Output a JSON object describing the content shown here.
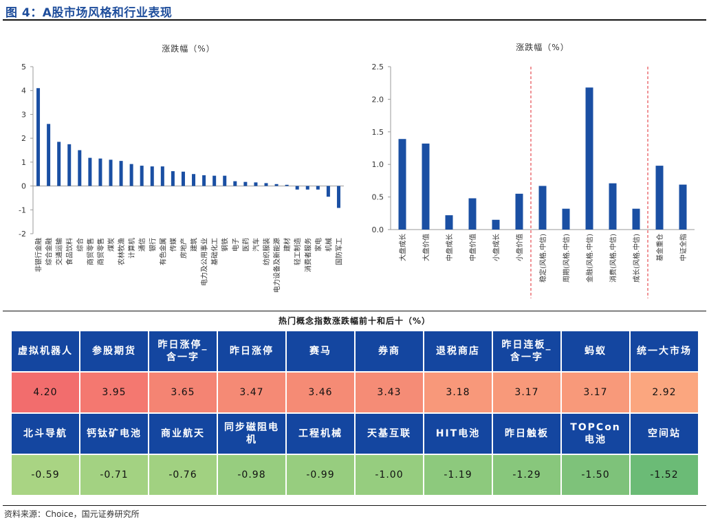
{
  "figure_title": "图 4：A股市场风格和行业表现",
  "source": "资料来源：Choice，国元证券研究所",
  "colors": {
    "bar": "#1a4fa3",
    "header": "#1446a0",
    "divider": "#e0262b"
  },
  "chart_data": [
    {
      "type": "bar",
      "title": "涨跌幅（%）",
      "ylim": [
        -2,
        5
      ],
      "yticks": [
        -2,
        -1,
        0,
        1,
        2,
        3,
        4,
        5
      ],
      "categories": [
        "非银行金融",
        "综合金融",
        "交通运输",
        "食品饮料",
        "综合",
        "商贸零售",
        "商贸零售",
        "煤炭",
        "农林牧渔",
        "计算机",
        "通信",
        "银行",
        "有色金属",
        "传媒",
        "房地产",
        "建筑",
        "电力及公用事业",
        "基础化工",
        "钢铁",
        "电子",
        "医药",
        "汽车",
        "纺织服装",
        "电力设备及新能源",
        "建材",
        "轻工制造",
        "消费者服务",
        "家电",
        "机械",
        "国防军工"
      ],
      "values": [
        4.1,
        2.6,
        1.85,
        1.75,
        1.5,
        1.18,
        1.15,
        1.1,
        1.05,
        0.92,
        0.85,
        0.82,
        0.82,
        0.62,
        0.6,
        0.5,
        0.45,
        0.43,
        0.43,
        0.2,
        0.17,
        0.15,
        0.12,
        0.08,
        0.05,
        -0.15,
        -0.15,
        -0.15,
        -0.45,
        -0.92
      ]
    },
    {
      "type": "bar",
      "title": "涨跌幅（%）",
      "ylim": [
        0,
        2.5
      ],
      "yticks": [
        0.0,
        0.5,
        1.0,
        1.5,
        2.0,
        2.5
      ],
      "categories": [
        "大盘成长",
        "大盘价值",
        "中盘成长",
        "中盘价值",
        "小盘成长",
        "小盘价值",
        "稳定(风格.中信)",
        "周期(风格.中信)",
        "金融(风格.中信)",
        "消费(风格.中信)",
        "成长(风格.中信)",
        "基金重仓",
        "中证全指"
      ],
      "values": [
        1.39,
        1.32,
        0.22,
        0.48,
        0.15,
        0.55,
        0.67,
        0.32,
        2.18,
        0.71,
        0.32,
        0.98,
        0.69
      ]
    }
  ],
  "table": {
    "title": "热门概念指数涨跌幅前十和后十（%）",
    "top": [
      {
        "name": "虚拟机器人",
        "value": "4.20",
        "color": "#f26d6d"
      },
      {
        "name": "参股期货",
        "value": "3.95",
        "color": "#f47870"
      },
      {
        "name": "昨日涨停_含一字",
        "value": "3.65",
        "color": "#f48473"
      },
      {
        "name": "昨日涨停",
        "value": "3.47",
        "color": "#f58a75"
      },
      {
        "name": "赛马",
        "value": "3.46",
        "color": "#f58b75"
      },
      {
        "name": "券商",
        "value": "3.43",
        "color": "#f58c76"
      },
      {
        "name": "退税商店",
        "value": "3.18",
        "color": "#f8987a"
      },
      {
        "name": "昨日连板_含一字",
        "value": "3.17",
        "color": "#f8997a"
      },
      {
        "name": "蚂蚁",
        "value": "3.17",
        "color": "#f8997a"
      },
      {
        "name": "统一大市场",
        "value": "2.92",
        "color": "#fba67f"
      }
    ],
    "bottom": [
      {
        "name": "北斗导航",
        "value": "-0.59",
        "color": "#a9d483"
      },
      {
        "name": "钙钛矿电池",
        "value": "-0.71",
        "color": "#a3d282"
      },
      {
        "name": "商业航天",
        "value": "-0.76",
        "color": "#a1d181"
      },
      {
        "name": "同步磁阻电机",
        "value": "-0.98",
        "color": "#97cd7f"
      },
      {
        "name": "工程机械",
        "value": "-0.99",
        "color": "#97cd7f"
      },
      {
        "name": "天基互联",
        "value": "-1.00",
        "color": "#96cd7f"
      },
      {
        "name": "HIT电池",
        "value": "-1.19",
        "color": "#8dc97d"
      },
      {
        "name": "昨日触板",
        "value": "-1.29",
        "color": "#88c77c"
      },
      {
        "name": "TOPCon电池",
        "value": "-1.50",
        "color": "#7ec27a"
      },
      {
        "name": "空间站",
        "value": "-1.52",
        "color": "#6bbb76"
      }
    ]
  }
}
